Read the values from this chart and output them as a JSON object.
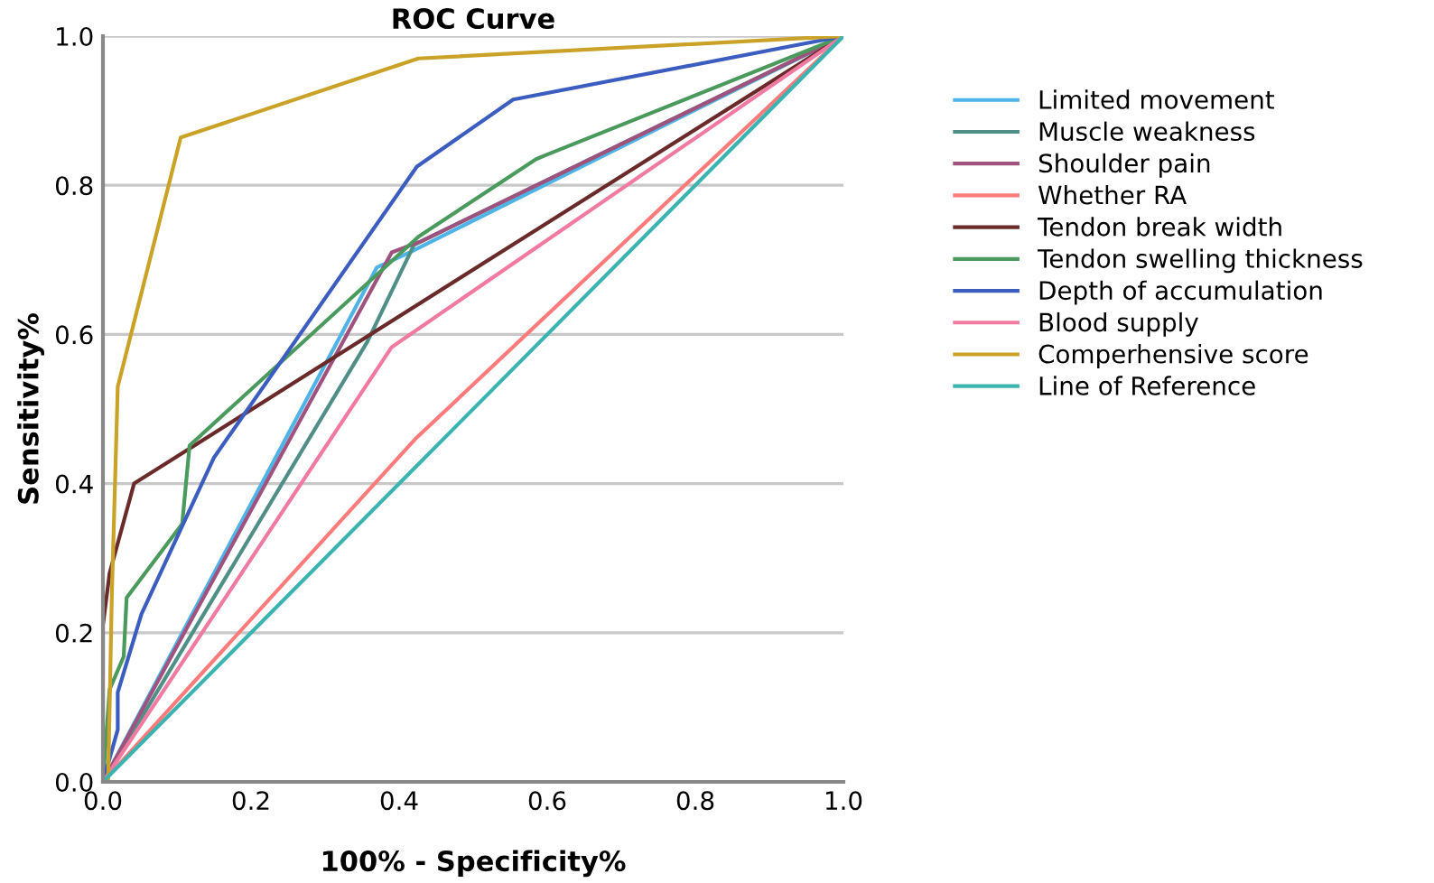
{
  "chart_data": {
    "type": "line",
    "title": "ROC Curve",
    "xlabel": "100% - Specificity%",
    "ylabel": "Sensitivity%",
    "xlim": [
      0,
      1
    ],
    "ylim": [
      0,
      1
    ],
    "xticks": [
      {
        "value": 0,
        "label": "0.0"
      },
      0.2,
      0.4,
      0.6,
      0.8,
      {
        "value": 1,
        "label": "1.0"
      }
    ],
    "yticks": [
      {
        "value": 0,
        "label": "0.0"
      },
      0.2,
      0.4,
      0.6,
      0.8,
      {
        "value": 1,
        "label": "1.0"
      }
    ],
    "grid": "y",
    "legend": "right",
    "marker": "none",
    "line_style": "solid",
    "series": [
      {
        "name": "Limited movement",
        "color": "#4fb3e8",
        "x": [
          0,
          0.37,
          0.414,
          1
        ],
        "values": [
          0,
          0.69,
          0.71,
          1
        ]
      },
      {
        "name": "Muscle weakness",
        "color": "#4f8f86",
        "x": [
          0,
          0.357,
          0.42,
          1
        ],
        "values": [
          0,
          0.59,
          0.72,
          1
        ]
      },
      {
        "name": "Shoulder pain",
        "color": "#a0527e",
        "x": [
          0,
          0.39,
          0.43,
          1
        ],
        "values": [
          0,
          0.71,
          0.725,
          1
        ]
      },
      {
        "name": "Whether RA",
        "color": "#ff7b7b",
        "x": [
          0,
          0.422,
          1
        ],
        "values": [
          0,
          0.46,
          1
        ]
      },
      {
        "name": "Tendon break width",
        "color": "#6b2a2a",
        "x": [
          0,
          0,
          0.009,
          0.042,
          1
        ],
        "values": [
          0,
          0.21,
          0.28,
          0.4,
          1
        ]
      },
      {
        "name": "Tendon swelling thickness",
        "color": "#4a9a5e",
        "x": [
          0,
          0.009,
          0.028,
          0.032,
          0.107,
          0.117,
          0.426,
          0.585,
          0.597,
          1
        ],
        "values": [
          0,
          0.124,
          0.168,
          0.247,
          0.346,
          0.451,
          0.731,
          0.835,
          0.84,
          1
        ]
      },
      {
        "name": "Depth of accumulation",
        "color": "#3a5dbf",
        "x": [
          0,
          0.02,
          0.02,
          0.052,
          0.15,
          0.424,
          0.554,
          1
        ],
        "values": [
          0,
          0.07,
          0.12,
          0.225,
          0.435,
          0.825,
          0.915,
          1
        ]
      },
      {
        "name": "Blood supply",
        "color": "#f07aa0",
        "x": [
          0,
          0.39,
          1
        ],
        "values": [
          0,
          0.583,
          1
        ]
      },
      {
        "name": "Comperhensive score",
        "color": "#c9a227",
        "x": [
          0,
          0.007,
          0.012,
          0.02,
          0.105,
          0.426,
          1
        ],
        "values": [
          0,
          0,
          0.25,
          0.53,
          0.864,
          0.97,
          1
        ]
      },
      {
        "name": "Line of Reference",
        "color": "#3bb3b0",
        "x": [
          0,
          1
        ],
        "values": [
          0,
          1
        ]
      }
    ]
  }
}
